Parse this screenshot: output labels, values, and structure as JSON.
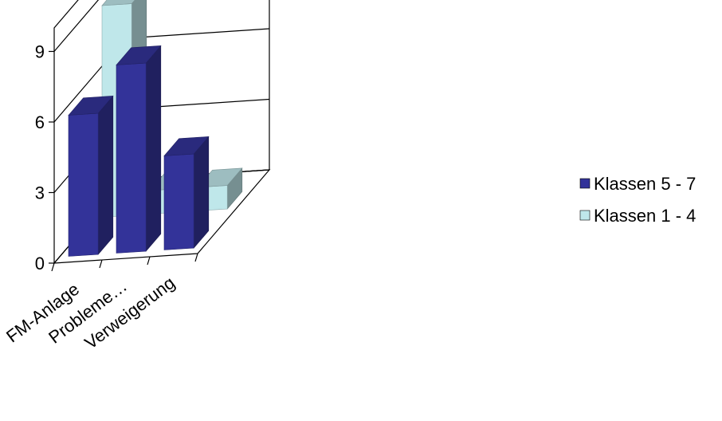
{
  "chart_data": {
    "type": "bar",
    "title": "",
    "xlabel": "",
    "ylabel": "",
    "categories": [
      "FM-Anlage",
      "Probleme…",
      "Verweigerung"
    ],
    "series": [
      {
        "name": "Klassen 5 - 7",
        "values": [
          6,
          8,
          4
        ],
        "color": "#333399"
      },
      {
        "name": "Klassen 1 - 4",
        "values": [
          9,
          1,
          1
        ],
        "color": "#bfe7ea"
      }
    ],
    "y_ticks": [
      "0",
      "3",
      "6",
      "9"
    ],
    "ylim": [
      0,
      10
    ],
    "grid": true,
    "legend_position": "right"
  }
}
